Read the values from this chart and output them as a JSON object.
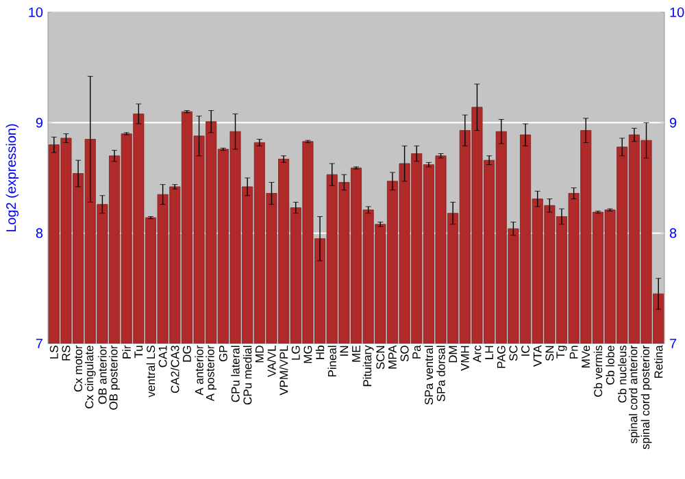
{
  "chart_data": {
    "type": "bar",
    "ylabel": "Log2 (expression)",
    "categories": [
      "LS",
      "RS",
      "Cx motor",
      "Cx cingulate",
      "OB anterior",
      "OB posterior",
      "Pir",
      "Tu",
      "ventral LS",
      "CA1",
      "CA2/CA3",
      "DG",
      "A anterior",
      "A posterior",
      "GP",
      "CPu lateral",
      "CPu medial",
      "MD",
      "VA/VL",
      "VPM/VPL",
      "LG",
      "MG",
      "Hb",
      "Pineal",
      "IN",
      "ME",
      "Pituitary",
      "SCN",
      "MPA",
      "SO",
      "Pa",
      "SPa ventral",
      "SPa dorsal",
      "DM",
      "VMH",
      "Arc",
      "LH",
      "PAG",
      "SC",
      "IC",
      "VTA",
      "SN",
      "Tg",
      "Pn",
      "MVe",
      "Cb vermis",
      "Cb lobe",
      "Cb nucleus",
      "spinal cord anterior",
      "spinal cord posterior",
      "Retina"
    ],
    "values": [
      8.8,
      8.86,
      8.54,
      8.85,
      8.26,
      8.7,
      8.9,
      9.08,
      8.14,
      8.35,
      8.42,
      9.1,
      8.88,
      9.01,
      8.76,
      8.92,
      8.42,
      8.82,
      8.36,
      8.67,
      8.23,
      8.83,
      7.95,
      8.53,
      8.46,
      8.59,
      8.21,
      8.08,
      8.47,
      8.63,
      8.72,
      8.62,
      8.7,
      8.18,
      8.93,
      9.14,
      8.66,
      8.92,
      8.04,
      8.89,
      8.31,
      8.25,
      8.15,
      8.36,
      8.93,
      8.19,
      8.21,
      8.78,
      8.89,
      8.84,
      7.45
    ],
    "errors": [
      0.07,
      0.04,
      0.12,
      0.57,
      0.08,
      0.05,
      0.01,
      0.09,
      0.01,
      0.09,
      0.02,
      0.01,
      0.18,
      0.1,
      0.01,
      0.16,
      0.08,
      0.03,
      0.1,
      0.03,
      0.05,
      0.01,
      0.2,
      0.1,
      0.07,
      0.01,
      0.03,
      0.02,
      0.08,
      0.16,
      0.07,
      0.02,
      0.02,
      0.1,
      0.14,
      0.21,
      0.04,
      0.11,
      0.06,
      0.1,
      0.07,
      0.06,
      0.07,
      0.05,
      0.11,
      0.01,
      0.01,
      0.08,
      0.06,
      0.16,
      0.14
    ],
    "color": "#b02a2a",
    "ylim": [
      7,
      10
    ],
    "yticks": [
      7,
      8,
      9,
      10
    ],
    "y2lim": [
      7,
      10
    ],
    "y2ticks": [
      7,
      8,
      9,
      10
    ],
    "grid": "y"
  }
}
